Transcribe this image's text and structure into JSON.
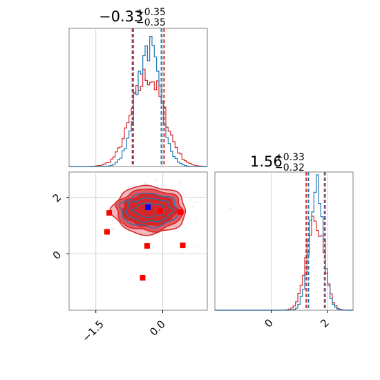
{
  "chart_data": {
    "type": "corner",
    "parameters": [
      {
        "title_value": "−0.33",
        "title_plus": "+0.35",
        "title_minus": "−0.35"
      },
      {
        "title_value": "1.56",
        "title_plus": "+0.33",
        "title_minus": "−0.32"
      }
    ],
    "x_ticks_param0": [
      {
        "value": -1.5,
        "label": "−1.5"
      },
      {
        "value": 0.0,
        "label": "0.0"
      }
    ],
    "y_ticks_param1": [
      {
        "value": 0,
        "label": "0"
      },
      {
        "value": 2,
        "label": "2"
      }
    ],
    "x_ticks_param1": [
      {
        "value": 0,
        "label": "0"
      },
      {
        "value": 2,
        "label": "2"
      }
    ],
    "ranges": {
      "param0": [
        -2.1,
        1.0
      ],
      "param1": [
        -2.0,
        2.9
      ]
    },
    "grid": true,
    "colors": {
      "blue": "#1f77b4",
      "red": "#d62728",
      "red_points": "#ff0000",
      "blue_point": "#0000ff",
      "frame": "#808080",
      "grid": "#d3d3d3"
    },
    "hist_param0": {
      "blue": {
        "center": -0.33,
        "sigma": 0.27,
        "peak": 0.86
      },
      "red": {
        "center": -0.33,
        "sigma": 0.36,
        "peak": 0.66
      },
      "quantile_lines_blue": [
        -0.66,
        -0.03
      ],
      "quantile_lines_red": [
        -0.68,
        0.03
      ]
    },
    "hist_param1": {
      "blue": {
        "center": 1.6,
        "sigma": 0.25,
        "peak": 0.88
      },
      "red": {
        "center": 1.55,
        "sigma": 0.3,
        "peak": 0.66
      },
      "quantile_lines_blue": [
        1.32,
        1.91
      ],
      "quantile_lines_red": [
        1.24,
        1.89
      ]
    },
    "scatter_2d": {
      "blue_point": {
        "x": -0.33,
        "y": 1.65
      },
      "red_points": [
        {
          "x": -1.2,
          "y": 1.45
        },
        {
          "x": -1.25,
          "y": 0.78
        },
        {
          "x": -0.35,
          "y": 0.28
        },
        {
          "x": 0.45,
          "y": 0.3
        },
        {
          "x": -0.45,
          "y": -0.85
        },
        {
          "x": -0.05,
          "y": 1.52
        },
        {
          "x": 0.4,
          "y": 1.48
        }
      ],
      "contour_center": {
        "x": -0.3,
        "y": 1.55
      }
    }
  }
}
